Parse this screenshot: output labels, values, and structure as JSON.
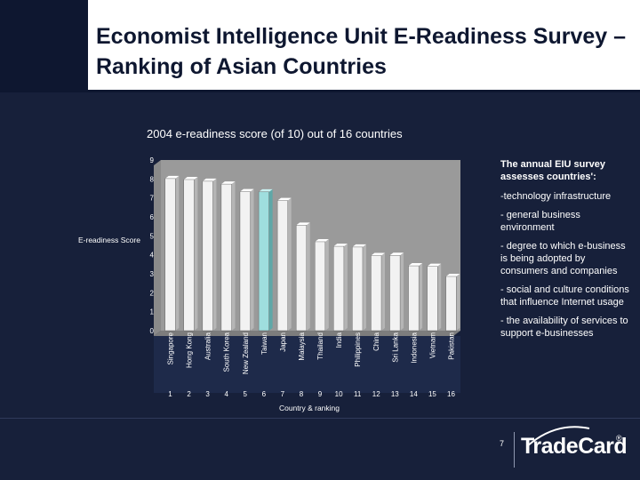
{
  "page": {
    "title": "Economist Intelligence Unit E-Readiness Survey – Ranking of Asian Countries",
    "page_number": "7"
  },
  "logo": {
    "text": "TradeCard",
    "reg_mark": "®"
  },
  "side_notes": {
    "heading": "The annual EIU survey assesses countries':",
    "items": [
      "-technology infrastructure",
      "- general business environment",
      "- degree to which e-business is being adopted by consumers and companies",
      "- social and culture conditions that influence Internet usage",
      "- the availability of services to support e-businesses"
    ]
  },
  "colors": {
    "bar": "#f2f2f2",
    "bar_highlight": "#9fdede",
    "plot_bg": "#9a9a9a",
    "slide_bg": "#17203a"
  },
  "chart_data": {
    "type": "bar",
    "title": "2004 e-readiness score (of 10) out of 16 countries",
    "xlabel": "Country & ranking",
    "ylabel": "E-readiness Score",
    "ylim": [
      0,
      9
    ],
    "yticks": [
      "0",
      "1",
      "2",
      "3",
      "4",
      "5",
      "6",
      "7",
      "8",
      "9"
    ],
    "categories": [
      "Singapore",
      "Hong Kong",
      "Australia",
      "South Korea",
      "New Zealand",
      "Taiwan",
      "Japan",
      "Malaysia",
      "Thailand",
      "India",
      "Philippines",
      "China",
      "Sri Lanka",
      "Indonesia",
      "Vietnam",
      "Pakistan"
    ],
    "rankings": [
      "1",
      "2",
      "3",
      "4",
      "5",
      "6",
      "7",
      "8",
      "9",
      "10",
      "11",
      "12",
      "13",
      "14",
      "15",
      "16"
    ],
    "values": [
      8.02,
      7.97,
      7.88,
      7.73,
      7.33,
      7.32,
      6.86,
      5.56,
      4.69,
      4.45,
      4.41,
      3.96,
      3.97,
      3.42,
      3.39,
      2.86
    ],
    "highlight": "Taiwan",
    "grid": false,
    "legend": "none"
  }
}
